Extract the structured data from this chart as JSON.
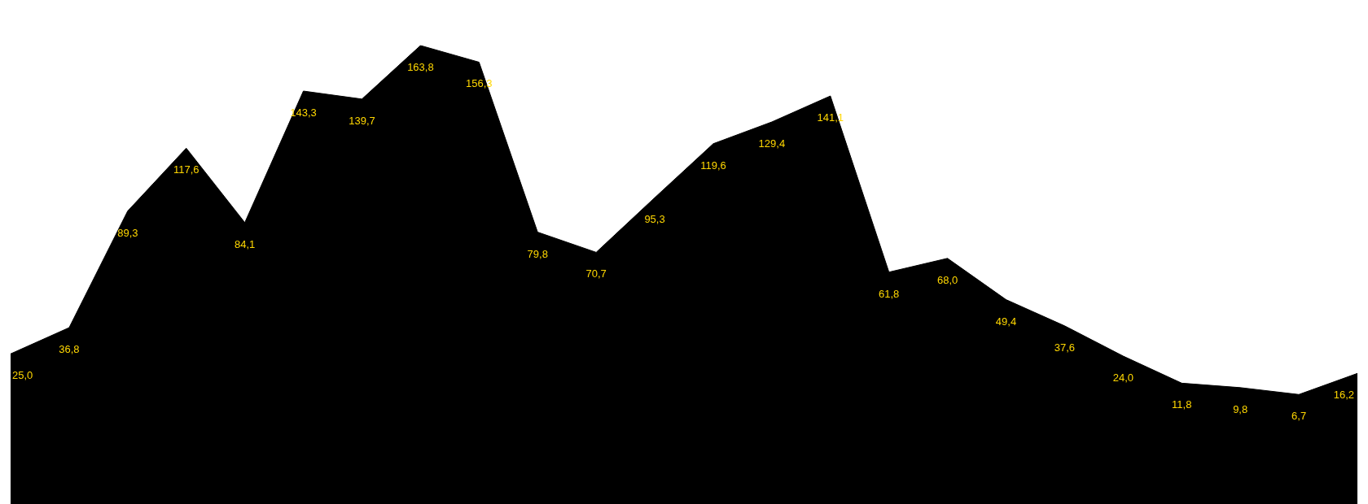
{
  "chart_data": {
    "type": "area",
    "categories": [
      null,
      null,
      null,
      null,
      null,
      null,
      null,
      null,
      null,
      null,
      null,
      null,
      null,
      null,
      null,
      null,
      null,
      null,
      null,
      null,
      null,
      null,
      null,
      null
    ],
    "series": [
      {
        "color": "#000000",
        "values": [
          25.0,
          36.8,
          89.3,
          117.6,
          84.1,
          143.3,
          139.7,
          163.8,
          156.3,
          79.8,
          70.7,
          95.3,
          119.6,
          129.4,
          141.1,
          61.8,
          68.0,
          49.4,
          37.6,
          24.0,
          11.8,
          9.8,
          6.7,
          16.2
        ],
        "value_labels": [
          "25,0",
          "36,8",
          "89,3",
          "117,6",
          "84,1",
          "143,3",
          "139,7",
          "163,8",
          "156,3",
          "79,8",
          "70,7",
          "95,3",
          "119,6",
          "129,4",
          "141,1",
          "61,8",
          "68,0",
          "49,4",
          "37,6",
          "24,0",
          "11,8",
          "9,8",
          "6,7",
          "16,2"
        ]
      }
    ],
    "tick_labels": false,
    "grid": false,
    "marker": "none"
  }
}
